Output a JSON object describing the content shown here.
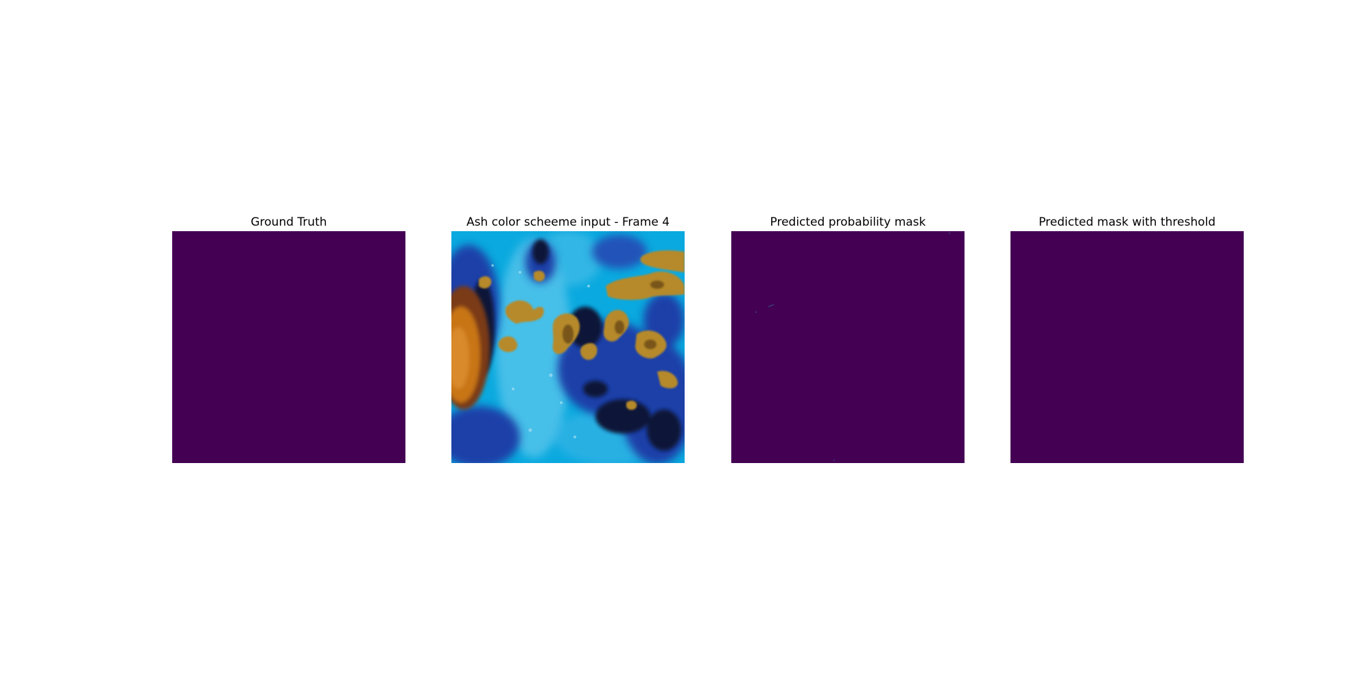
{
  "panels": [
    {
      "title": "Ground Truth"
    },
    {
      "title": "Ash color scheeme input - Frame 4"
    },
    {
      "title": "Predicted probability mask"
    },
    {
      "title": "Predicted mask with threshold"
    }
  ],
  "colors": {
    "mask_background": "#440154",
    "ash_cyan": "#0aa9df",
    "ash_blue": "#1f3fa8",
    "ash_dark": "#0c1337",
    "ash_orange": "#c87518",
    "ash_gold": "#b68a2a"
  }
}
